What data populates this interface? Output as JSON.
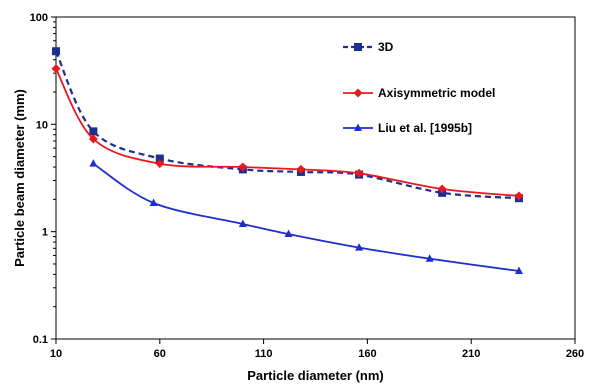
{
  "chart_data": {
    "type": "line",
    "title": "",
    "xlabel": "Particle diameter (nm)",
    "ylabel": "Particle beam diameter (mm)",
    "xlim": [
      10,
      260
    ],
    "ylim": [
      0.1,
      100
    ],
    "yscale": "log",
    "x_ticks": [
      "10",
      "60",
      "110",
      "160",
      "210",
      "260"
    ],
    "y_ticks": [
      "0.1",
      "1",
      "10",
      "100"
    ],
    "grid": false,
    "legend_position": "top-right",
    "series": [
      {
        "name": "3D",
        "color": "#1f2f8f",
        "line_style": "dashed",
        "marker": "square",
        "x": [
          10,
          28,
          60,
          100,
          128,
          156,
          196,
          233
        ],
        "y": [
          48,
          8.6,
          4.8,
          3.8,
          3.6,
          3.4,
          2.3,
          2.05
        ]
      },
      {
        "name": "Axisymmetric model",
        "color": "#e8191e",
        "line_style": "solid",
        "marker": "diamond",
        "x": [
          10,
          28,
          60,
          100,
          128,
          156,
          196,
          233
        ],
        "y": [
          33,
          7.3,
          4.3,
          4.0,
          3.8,
          3.5,
          2.5,
          2.15
        ]
      },
      {
        "name": "Liu et al. [1995b]",
        "color": "#1f2fcf",
        "line_style": "solid",
        "marker": "triangle",
        "x": [
          28,
          57,
          100,
          122,
          156,
          190,
          233
        ],
        "y": [
          4.3,
          1.85,
          1.18,
          0.95,
          0.71,
          0.56,
          0.43
        ]
      }
    ]
  }
}
